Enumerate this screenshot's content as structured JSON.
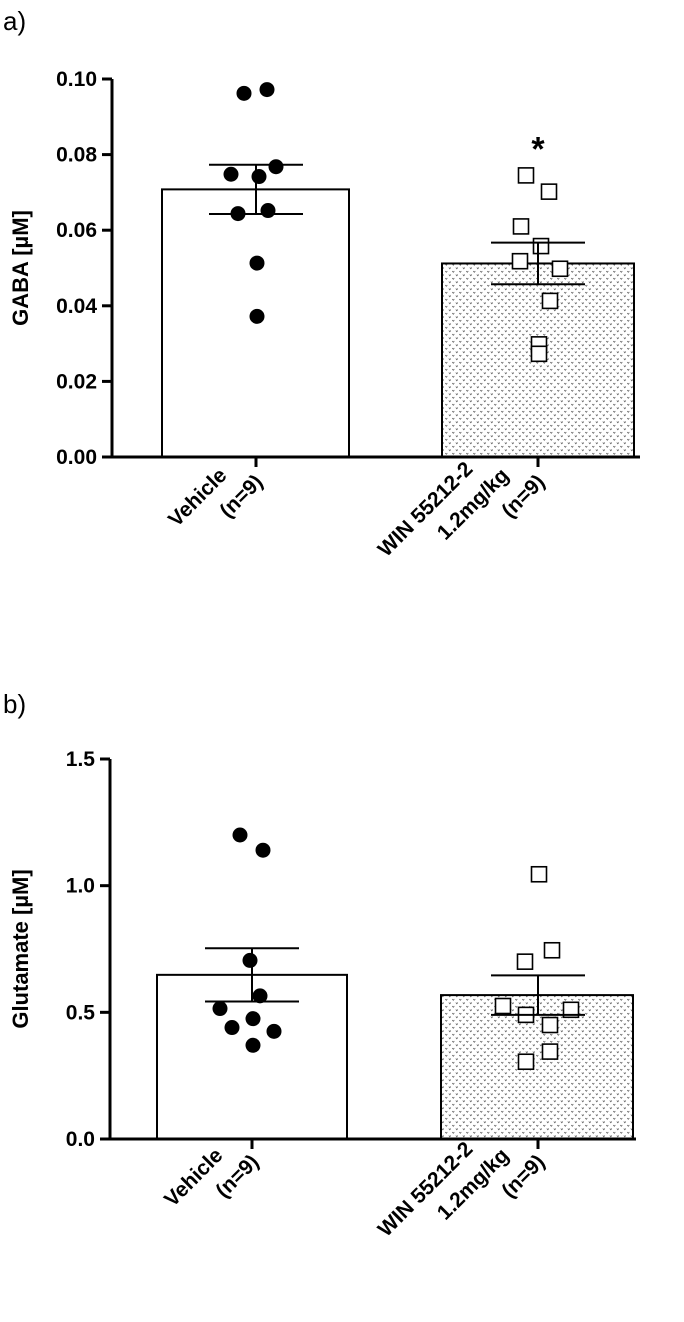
{
  "chart_data": [
    {
      "panel_label": "a)",
      "type": "bar",
      "ylabel": "GABA [µM]",
      "ylim": [
        0,
        0.1
      ],
      "yticks": [
        "0.00",
        "0.02",
        "0.04",
        "0.06",
        "0.08",
        "0.10"
      ],
      "grid": false,
      "categories": [
        {
          "lines": [
            "Vehicle",
            "(n=9)"
          ]
        },
        {
          "lines": [
            "WIN 55212-2",
            "1.2mg/kg",
            "(n=9)"
          ]
        }
      ],
      "bars": [
        {
          "fill": "white",
          "mean": 0.0708,
          "sem": 0.0065,
          "marker": "filled-circle",
          "points": [
            0.0962,
            0.0972,
            0.0748,
            0.0742,
            0.0768,
            0.0644,
            0.0652,
            0.0513,
            0.0372
          ],
          "annotation": ""
        },
        {
          "fill": "stipple",
          "mean": 0.0512,
          "sem": 0.0055,
          "marker": "open-square",
          "points": [
            0.0745,
            0.0702,
            0.061,
            0.0558,
            0.0498,
            0.0518,
            0.0413,
            0.0298,
            0.0273
          ],
          "annotation": "*"
        }
      ]
    },
    {
      "panel_label": "b)",
      "type": "bar",
      "ylabel": "Glutamate [µM]",
      "ylim": [
        0,
        1.5
      ],
      "yticks": [
        "0.0",
        "0.5",
        "1.0",
        "1.5"
      ],
      "grid": false,
      "categories": [
        {
          "lines": [
            "Vehicle",
            "(n=9)"
          ]
        },
        {
          "lines": [
            "WIN 55212-2",
            "1.2mg/kg",
            "(n=9)"
          ]
        }
      ],
      "bars": [
        {
          "fill": "white",
          "mean": 0.648,
          "sem": 0.105,
          "marker": "filled-circle",
          "points": [
            1.2,
            1.14,
            0.705,
            0.565,
            0.515,
            0.44,
            0.475,
            0.425,
            0.37
          ],
          "annotation": ""
        },
        {
          "fill": "stipple",
          "mean": 0.568,
          "sem": 0.078,
          "marker": "open-square",
          "points": [
            1.045,
            0.745,
            0.7,
            0.525,
            0.49,
            0.51,
            0.45,
            0.345,
            0.305
          ],
          "annotation": ""
        }
      ]
    }
  ]
}
